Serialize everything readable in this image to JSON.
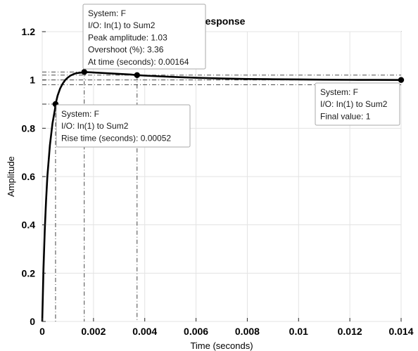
{
  "chart_data": {
    "type": "line",
    "title": "Response",
    "xlabel": "Time (seconds)",
    "ylabel": "Amplitude",
    "xlim": [
      0,
      0.014
    ],
    "ylim": [
      0,
      1.2
    ],
    "grid": true,
    "x_ticks": [
      "0",
      "0.002",
      "0.004",
      "0.006",
      "0.008",
      "0.01",
      "0.012",
      "0.014"
    ],
    "y_ticks": [
      "0",
      "0.2",
      "0.4",
      "0.6",
      "0.8",
      "1",
      "1.2"
    ],
    "series": [
      {
        "x": [
          0,
          5e-05,
          0.0001,
          0.00015,
          0.0002,
          0.0003,
          0.0004,
          0.0005,
          0.00052,
          0.0006,
          0.0007,
          0.0008,
          0.0009,
          0.001,
          0.0011,
          0.0012,
          0.0013,
          0.0014,
          0.0015,
          0.00164,
          0.002,
          0.0025,
          0.003,
          0.0035,
          0.0037,
          0.004,
          0.005,
          0.006,
          0.007,
          0.008,
          0.009,
          0.01,
          0.011,
          0.012,
          0.013,
          0.014
        ],
        "y": [
          0,
          0.22,
          0.38,
          0.5,
          0.6,
          0.73,
          0.82,
          0.88,
          0.9,
          0.935,
          0.965,
          0.985,
          1.0,
          1.01,
          1.018,
          1.023,
          1.027,
          1.029,
          1.03,
          1.033,
          1.031,
          1.028,
          1.025,
          1.022,
          1.02,
          1.018,
          1.013,
          1.009,
          1.006,
          1.004,
          1.003,
          1.002,
          1.001,
          1.0005,
          1.0002,
          1.0
        ]
      }
    ],
    "markers": [
      {
        "x": 0.00052,
        "y": 0.9
      },
      {
        "x": 0.00164,
        "y": 1.033
      },
      {
        "x": 0.0037,
        "y": 1.02
      },
      {
        "x": 0.014,
        "y": 1.0
      }
    ],
    "annotations": [
      {
        "lines": [
          "System: F",
          "I/O: In(1) to Sum2",
          "Peak amplitude: 1.03",
          "Overshoot (%): 3.36",
          "At time (seconds): 0.00164"
        ]
      },
      {
        "lines": [
          "System: F",
          "I/O: In(1) to Sum2",
          "Rise time (seconds): 0.00052"
        ]
      },
      {
        "lines": [
          "System: F",
          "I/O: In(1) to Sum2",
          "Final value: 1"
        ]
      }
    ]
  }
}
